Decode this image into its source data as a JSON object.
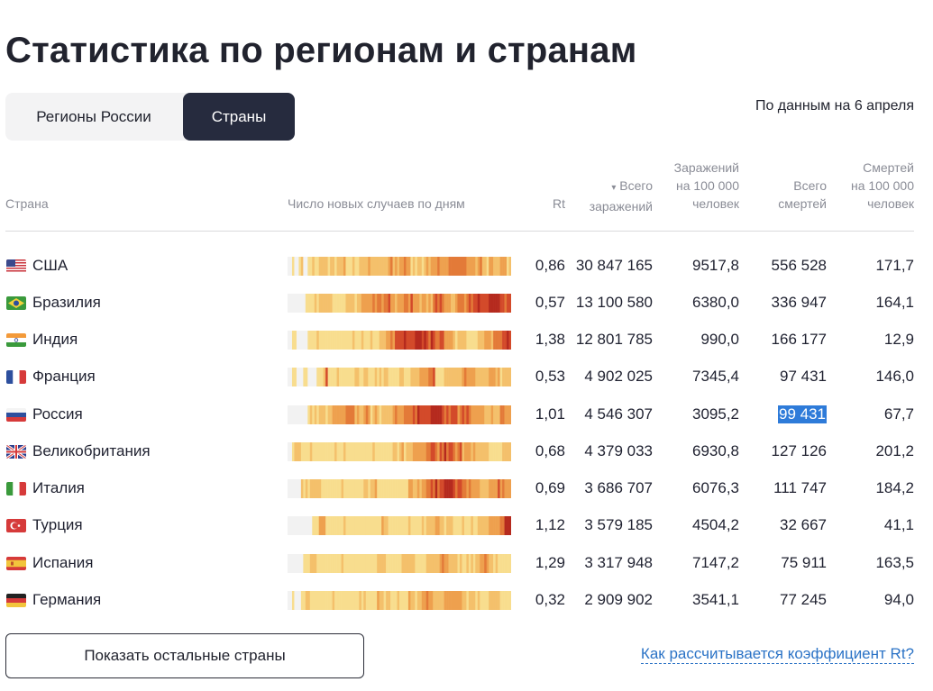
{
  "title": "Статистика по регионам и странам",
  "tabs": [
    {
      "label": "Регионы России",
      "active": false
    },
    {
      "label": "Страны",
      "active": true
    }
  ],
  "as_of": "По данным на 6 апреля",
  "headers": {
    "country": "Страна",
    "chart": "Число новых случаев по дням",
    "rt": "Rt",
    "sort_arrow": "▾",
    "total": [
      "Всего",
      "заражений"
    ],
    "per100k": [
      "Заражений",
      "на 100 000",
      "человек"
    ],
    "deaths": [
      "Всего",
      "смертей"
    ],
    "deaths_per100k": [
      "Смертей",
      "на 100 000",
      "человек"
    ]
  },
  "rows": [
    {
      "flag": "us",
      "country": "США",
      "rt": "0,86",
      "total": "30 847 165",
      "per100k": "9517,8",
      "deaths": "556 528",
      "deaths_per100k": "171,7"
    },
    {
      "flag": "br",
      "country": "Бразилия",
      "rt": "0,57",
      "total": "13 100 580",
      "per100k": "6380,0",
      "deaths": "336 947",
      "deaths_per100k": "164,1"
    },
    {
      "flag": "in",
      "country": "Индия",
      "rt": "1,38",
      "total": "12 801 785",
      "per100k": "990,0",
      "deaths": "166 177",
      "deaths_per100k": "12,9"
    },
    {
      "flag": "fr",
      "country": "Франция",
      "rt": "0,53",
      "total": "4 902 025",
      "per100k": "7345,4",
      "deaths": "97 431",
      "deaths_per100k": "146,0"
    },
    {
      "flag": "ru",
      "country": "Россия",
      "rt": "1,01",
      "total": "4 546 307",
      "per100k": "3095,2",
      "deaths": "99 431",
      "deaths_per100k": "67,7",
      "deaths_selected": true
    },
    {
      "flag": "gb",
      "country": "Великобритания",
      "rt": "0,68",
      "total": "4 379 033",
      "per100k": "6930,8",
      "deaths": "127 126",
      "deaths_per100k": "201,2"
    },
    {
      "flag": "it",
      "country": "Италия",
      "rt": "0,69",
      "total": "3 686 707",
      "per100k": "6076,3",
      "deaths": "111 747",
      "deaths_per100k": "184,2"
    },
    {
      "flag": "tr",
      "country": "Турция",
      "rt": "1,12",
      "total": "3 579 185",
      "per100k": "4504,2",
      "deaths": "32 667",
      "deaths_per100k": "41,1"
    },
    {
      "flag": "es",
      "country": "Испания",
      "rt": "1,29",
      "total": "3 317 948",
      "per100k": "7147,2",
      "deaths": "75 911",
      "deaths_per100k": "163,5"
    },
    {
      "flag": "de",
      "country": "Германия",
      "rt": "0,32",
      "total": "2 909 902",
      "per100k": "3541,1",
      "deaths": "77 245",
      "deaths_per100k": "94,0"
    }
  ],
  "heat_colors": [
    "#f2f2f2",
    "#f8dd8e",
    "#f4c06b",
    "#eea04e",
    "#e37a38",
    "#d34a2a",
    "#b52a1e"
  ],
  "heat_profiles": {
    "us": [
      [
        0.0,
        0
      ],
      [
        0.02,
        1
      ],
      [
        0.03,
        0
      ],
      [
        0.05,
        1
      ],
      [
        0.07,
        0
      ],
      [
        0.09,
        1
      ],
      [
        0.14,
        2
      ],
      [
        0.3,
        1
      ],
      [
        0.34,
        2
      ],
      [
        0.45,
        3
      ],
      [
        0.55,
        2
      ],
      [
        0.62,
        3
      ],
      [
        0.72,
        4
      ],
      [
        0.8,
        3
      ],
      [
        0.88,
        2
      ],
      [
        0.95,
        3
      ],
      [
        0.98,
        2
      ]
    ],
    "br": [
      [
        0.0,
        0
      ],
      [
        0.08,
        1
      ],
      [
        0.13,
        2
      ],
      [
        0.2,
        1
      ],
      [
        0.26,
        2
      ],
      [
        0.32,
        3
      ],
      [
        0.4,
        4
      ],
      [
        0.46,
        3
      ],
      [
        0.52,
        4
      ],
      [
        0.58,
        3
      ],
      [
        0.65,
        4
      ],
      [
        0.7,
        3
      ],
      [
        0.76,
        4
      ],
      [
        0.82,
        5
      ],
      [
        0.9,
        6
      ],
      [
        0.96,
        5
      ]
    ],
    "in": [
      [
        0.0,
        0
      ],
      [
        0.02,
        1
      ],
      [
        0.04,
        0
      ],
      [
        0.09,
        1
      ],
      [
        0.4,
        2
      ],
      [
        0.44,
        3
      ],
      [
        0.46,
        4
      ],
      [
        0.48,
        5
      ],
      [
        0.56,
        6
      ],
      [
        0.62,
        5
      ],
      [
        0.66,
        4
      ],
      [
        0.7,
        3
      ],
      [
        0.74,
        2
      ],
      [
        0.8,
        1
      ],
      [
        0.84,
        2
      ],
      [
        0.88,
        3
      ],
      [
        0.92,
        4
      ],
      [
        0.96,
        5
      ]
    ],
    "fr": [
      [
        0.0,
        0
      ],
      [
        0.02,
        1
      ],
      [
        0.04,
        0
      ],
      [
        0.07,
        1
      ],
      [
        0.09,
        0
      ],
      [
        0.13,
        1
      ],
      [
        0.17,
        5
      ],
      [
        0.18,
        1
      ],
      [
        0.3,
        2
      ],
      [
        0.36,
        1
      ],
      [
        0.55,
        2
      ],
      [
        0.58,
        3
      ],
      [
        0.64,
        4
      ],
      [
        0.66,
        1
      ],
      [
        0.7,
        2
      ],
      [
        0.78,
        3
      ],
      [
        0.84,
        2
      ],
      [
        0.9,
        3
      ],
      [
        0.95,
        2
      ]
    ],
    "ru": [
      [
        0.0,
        0
      ],
      [
        0.09,
        1
      ],
      [
        0.14,
        2
      ],
      [
        0.2,
        3
      ],
      [
        0.26,
        4
      ],
      [
        0.3,
        3
      ],
      [
        0.36,
        2
      ],
      [
        0.44,
        3
      ],
      [
        0.52,
        4
      ],
      [
        0.58,
        5
      ],
      [
        0.64,
        6
      ],
      [
        0.7,
        5
      ],
      [
        0.76,
        4
      ],
      [
        0.82,
        3
      ],
      [
        0.88,
        2
      ],
      [
        0.94,
        3
      ]
    ],
    "gb": [
      [
        0.0,
        0
      ],
      [
        0.02,
        1
      ],
      [
        0.04,
        2
      ],
      [
        0.06,
        1
      ],
      [
        0.5,
        2
      ],
      [
        0.56,
        3
      ],
      [
        0.62,
        4
      ],
      [
        0.7,
        5
      ],
      [
        0.74,
        4
      ],
      [
        0.78,
        3
      ],
      [
        0.84,
        2
      ],
      [
        0.9,
        1
      ],
      [
        0.96,
        2
      ]
    ],
    "it": [
      [
        0.0,
        0
      ],
      [
        0.06,
        1
      ],
      [
        0.1,
        2
      ],
      [
        0.14,
        1
      ],
      [
        0.34,
        2
      ],
      [
        0.4,
        1
      ],
      [
        0.54,
        2
      ],
      [
        0.58,
        3
      ],
      [
        0.62,
        4
      ],
      [
        0.66,
        5
      ],
      [
        0.7,
        6
      ],
      [
        0.74,
        5
      ],
      [
        0.78,
        4
      ],
      [
        0.82,
        3
      ],
      [
        0.86,
        2
      ],
      [
        0.9,
        3
      ],
      [
        0.94,
        4
      ],
      [
        0.97,
        3
      ]
    ],
    "tr": [
      [
        0.0,
        0
      ],
      [
        0.11,
        1
      ],
      [
        0.14,
        3
      ],
      [
        0.17,
        1
      ],
      [
        0.4,
        2
      ],
      [
        0.45,
        1
      ],
      [
        0.62,
        2
      ],
      [
        0.66,
        3
      ],
      [
        0.7,
        2
      ],
      [
        0.74,
        1
      ],
      [
        0.86,
        2
      ],
      [
        0.9,
        3
      ],
      [
        0.94,
        4
      ],
      [
        0.97,
        6
      ]
    ],
    "es": [
      [
        0.0,
        0
      ],
      [
        0.07,
        1
      ],
      [
        0.1,
        2
      ],
      [
        0.12,
        1
      ],
      [
        0.4,
        2
      ],
      [
        0.44,
        1
      ],
      [
        0.52,
        2
      ],
      [
        0.56,
        1
      ],
      [
        0.62,
        2
      ],
      [
        0.68,
        3
      ],
      [
        0.72,
        2
      ],
      [
        0.76,
        1
      ],
      [
        0.82,
        2
      ],
      [
        0.86,
        3
      ],
      [
        0.9,
        2
      ],
      [
        0.94,
        1
      ]
    ],
    "de": [
      [
        0.0,
        0
      ],
      [
        0.02,
        1
      ],
      [
        0.03,
        0
      ],
      [
        0.06,
        1
      ],
      [
        0.08,
        2
      ],
      [
        0.1,
        1
      ],
      [
        0.4,
        2
      ],
      [
        0.46,
        1
      ],
      [
        0.54,
        2
      ],
      [
        0.6,
        3
      ],
      [
        0.66,
        2
      ],
      [
        0.72,
        3
      ],
      [
        0.78,
        2
      ],
      [
        0.84,
        1
      ],
      [
        0.9,
        2
      ],
      [
        0.96,
        1
      ]
    ]
  },
  "footer": {
    "more_button": "Показать остальные страны",
    "rt_link": "Как рассчитывается коэффициент Rt?"
  }
}
